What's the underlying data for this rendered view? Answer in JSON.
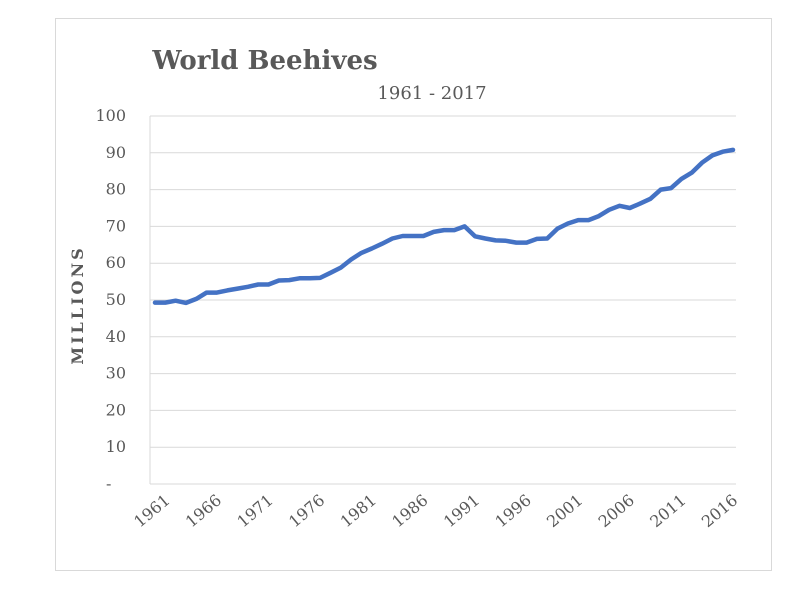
{
  "chart_data": {
    "type": "line",
    "title": "World Beehives",
    "subtitle": "1961 - 2017",
    "xlabel": "",
    "ylabel": "MILLIONS",
    "ylim": [
      0,
      100
    ],
    "grid": true,
    "line_color": "#4472C4",
    "yticks": [
      "-",
      "10",
      "20",
      "30",
      "40",
      "50",
      "60",
      "70",
      "80",
      "90",
      "100"
    ],
    "xticks": [
      "1961",
      "1966",
      "1971",
      "1976",
      "1981",
      "1986",
      "1991",
      "1996",
      "2001",
      "2006",
      "2011",
      "2016"
    ],
    "series": [
      {
        "x": [
          1961,
          1962,
          1963,
          1964,
          1965,
          1966,
          1967,
          1968,
          1969,
          1970,
          1971,
          1972,
          1973,
          1974,
          1975,
          1976,
          1977,
          1978,
          1979,
          1980,
          1981,
          1982,
          1983,
          1984,
          1985,
          1986,
          1987,
          1988,
          1989,
          1990,
          1991,
          1992,
          1993,
          1994,
          1995,
          1996,
          1997,
          1998,
          1999,
          2000,
          2001,
          2002,
          2003,
          2004,
          2005,
          2006,
          2007,
          2008,
          2009,
          2010,
          2011,
          2012,
          2013,
          2014,
          2015,
          2016,
          2017
        ],
        "values": [
          49.3,
          49.3,
          49.8,
          49.2,
          50.3,
          52.0,
          52.0,
          52.6,
          53.1,
          53.6,
          54.2,
          54.2,
          55.3,
          55.4,
          55.9,
          55.9,
          56.0,
          57.4,
          58.8,
          61.0,
          62.8,
          64.0,
          65.3,
          66.7,
          67.4,
          67.4,
          67.4,
          68.5,
          69.0,
          69.0,
          70.0,
          67.3,
          66.7,
          66.2,
          66.1,
          65.6,
          65.6,
          66.6,
          66.7,
          69.4,
          70.8,
          71.7,
          71.7,
          72.8,
          74.5,
          75.6,
          75.0,
          76.2,
          77.5,
          80.0,
          80.4,
          82.9,
          84.6,
          87.3,
          89.3,
          90.3,
          90.8
        ]
      }
    ]
  }
}
